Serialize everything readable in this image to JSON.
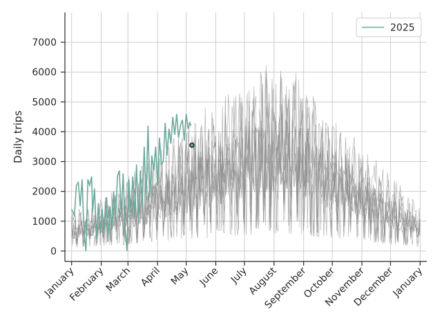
{
  "chart_data": {
    "type": "line",
    "ylabel": "Daily trips",
    "yticks": [
      0,
      1000,
      2000,
      3000,
      4000,
      5000,
      6000,
      7000
    ],
    "ylim": [
      -350,
      8000
    ],
    "xticks": [
      "January",
      "February",
      "March",
      "April",
      "May",
      "June",
      "July",
      "August",
      "September",
      "October",
      "November",
      "December",
      "January"
    ],
    "xlim_days": [
      -7,
      372
    ],
    "grid": true,
    "legend": {
      "position": "top-right",
      "entries": [
        "2025"
      ]
    },
    "colors": {
      "current": "#6aa89c",
      "history": "#8c8c8c",
      "marker": "#1a1a1a"
    },
    "history_profile": {
      "day": [
        0,
        30,
        60,
        90,
        120,
        150,
        180,
        205,
        230,
        260,
        290,
        320,
        350,
        365
      ],
      "level": [
        800,
        1100,
        1500,
        2000,
        2600,
        3000,
        3500,
        4000,
        3900,
        3200,
        2400,
        1800,
        1200,
        900
      ],
      "years": 8
    },
    "series": [
      {
        "name": "2025",
        "x_days": [
          0,
          3,
          5,
          7,
          9,
          11,
          13,
          15,
          17,
          19,
          21,
          22,
          24,
          26,
          28,
          30,
          32,
          34,
          36,
          38,
          40,
          42,
          44,
          46,
          48,
          50,
          52,
          54,
          56,
          58,
          60,
          62,
          64,
          66,
          68,
          70,
          72,
          74,
          76,
          78,
          80,
          82,
          84,
          86,
          88,
          90,
          92,
          94,
          96,
          98,
          100,
          102,
          104,
          106,
          108,
          110,
          112,
          114,
          116,
          118,
          120,
          122,
          124,
          125
        ],
        "values": [
          1400,
          1200,
          2200,
          2300,
          1500,
          2400,
          600,
          0,
          2400,
          2200,
          2500,
          1300,
          2100,
          400,
          1600,
          600,
          1400,
          700,
          1800,
          300,
          1500,
          700,
          2000,
          1000,
          2500,
          2700,
          1200,
          2600,
          800,
          0,
          2400,
          1300,
          2500,
          1100,
          2900,
          900,
          2700,
          1500,
          3500,
          1700,
          4200,
          1800,
          3200,
          2700,
          3500,
          2200,
          3800,
          2900,
          3000,
          4300,
          3200,
          4100,
          3600,
          4500,
          3900,
          4600,
          3800,
          4200,
          4400,
          3700,
          4600,
          4100,
          4300,
          4200
        ]
      }
    ],
    "marker": {
      "x_day": 126,
      "value": 3550
    }
  }
}
